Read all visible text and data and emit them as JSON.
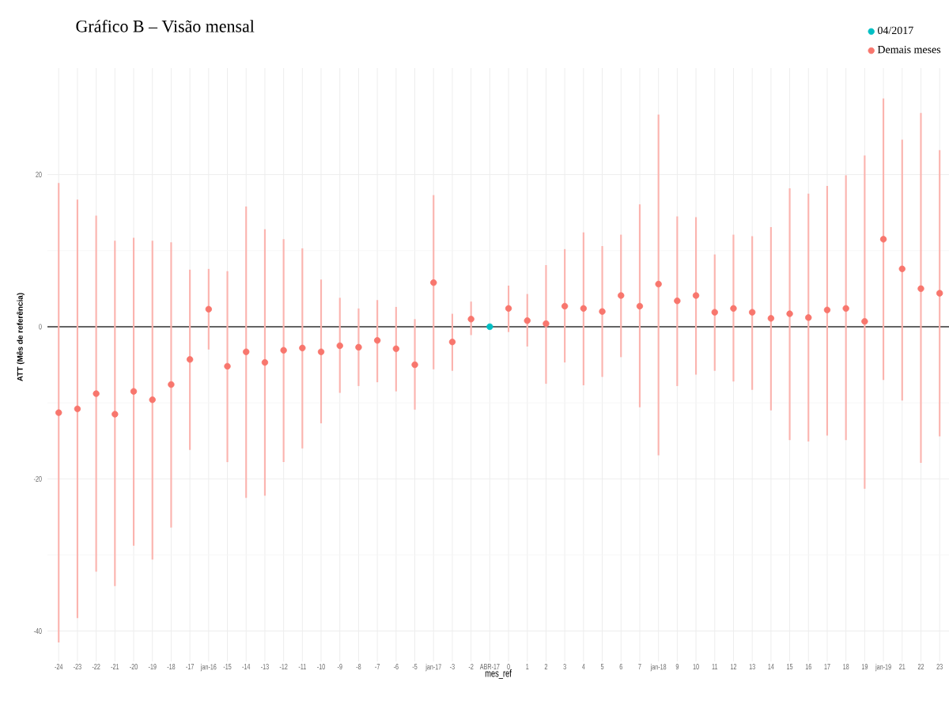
{
  "chart_data": {
    "type": "scatter",
    "title": "Gráfico B – Visão mensal",
    "xlabel": "mes_ref",
    "ylabel": "ATT (Mês de referência)",
    "categories": [
      "-24",
      "-23",
      "-22",
      "-21",
      "-20",
      "-19",
      "-18",
      "-17",
      "jan-16",
      "-15",
      "-14",
      "-13",
      "-12",
      "-11",
      "-10",
      "-9",
      "-8",
      "-7",
      "-6",
      "-5",
      "jan-17",
      "-3",
      "-2",
      "ABR-17",
      "0",
      "1",
      "2",
      "3",
      "4",
      "5",
      "6",
      "7",
      "jan-18",
      "9",
      "10",
      "11",
      "12",
      "13",
      "14",
      "15",
      "16",
      "17",
      "18",
      "19",
      "jan-19",
      "21",
      "22",
      "23"
    ],
    "series": [
      {
        "name": "04/2017",
        "color": "#00bfc4",
        "values": [
          null,
          null,
          null,
          null,
          null,
          null,
          null,
          null,
          null,
          null,
          null,
          null,
          null,
          null,
          null,
          null,
          null,
          null,
          null,
          null,
          null,
          null,
          null,
          0,
          null,
          null,
          null,
          null,
          null,
          null,
          null,
          null,
          null,
          null,
          null,
          null,
          null,
          null,
          null,
          null,
          null,
          null,
          null,
          null,
          null,
          null,
          null,
          null
        ]
      },
      {
        "name": "Demais meses",
        "color": "#f8766d",
        "values": [
          -11.3,
          -10.8,
          -8.8,
          -11.5,
          -8.5,
          -9.6,
          -7.6,
          -4.3,
          2.3,
          -5.2,
          -3.3,
          -4.7,
          -3.1,
          -2.8,
          -3.3,
          -2.5,
          -2.7,
          -1.8,
          -2.9,
          -5.0,
          5.8,
          -2.0,
          1.0,
          null,
          2.4,
          0.8,
          0.4,
          2.7,
          2.4,
          2.0,
          4.1,
          2.7,
          5.6,
          3.4,
          4.1,
          1.9,
          2.4,
          1.9,
          1.1,
          1.7,
          1.2,
          2.2,
          2.4,
          0.7,
          11.5,
          7.6,
          5.0,
          4.4
        ],
        "errors": [
          [
            -41.5,
            18.9
          ],
          [
            -38.3,
            16.7
          ],
          [
            -32.2,
            14.6
          ],
          [
            -34.1,
            11.3
          ],
          [
            -28.8,
            11.7
          ],
          [
            -30.6,
            11.3
          ],
          [
            -26.4,
            11.1
          ],
          [
            -16.2,
            7.5
          ],
          [
            -3.0,
            7.6
          ],
          [
            -17.8,
            7.3
          ],
          [
            -22.5,
            15.8
          ],
          [
            -22.2,
            12.8
          ],
          [
            -17.8,
            11.5
          ],
          [
            -16.0,
            10.3
          ],
          [
            -12.7,
            6.2
          ],
          [
            -8.7,
            3.8
          ],
          [
            -7.8,
            2.4
          ],
          [
            -7.3,
            3.5
          ],
          [
            -8.5,
            2.6
          ],
          [
            -10.9,
            1.0
          ],
          [
            -5.6,
            17.3
          ],
          [
            -5.8,
            1.7
          ],
          [
            -1.1,
            3.3
          ],
          null,
          [
            -0.7,
            5.4
          ],
          [
            -2.6,
            4.3
          ],
          [
            -7.5,
            8.1
          ],
          [
            -4.7,
            10.2
          ],
          [
            -7.7,
            12.4
          ],
          [
            -6.6,
            10.6
          ],
          [
            -4.0,
            12.1
          ],
          [
            -10.6,
            16.1
          ],
          [
            -16.9,
            27.9
          ],
          [
            -7.8,
            14.5
          ],
          [
            -6.3,
            14.4
          ],
          [
            -5.8,
            9.5
          ],
          [
            -7.2,
            12.1
          ],
          [
            -8.3,
            11.9
          ],
          [
            -11.0,
            13.1
          ],
          [
            -14.9,
            18.2
          ],
          [
            -15.1,
            17.5
          ],
          [
            -14.3,
            18.5
          ],
          [
            -14.9,
            19.9
          ],
          [
            -21.3,
            22.5
          ],
          [
            -7.0,
            30.0
          ],
          [
            -9.7,
            24.6
          ],
          [
            -17.9,
            28.1
          ],
          [
            -14.4,
            23.2
          ]
        ]
      }
    ],
    "ylim": [
      -44,
      34
    ],
    "yticks": [
      -40,
      -20,
      0,
      20
    ],
    "grid": true,
    "legend": "top right",
    "marker": "circle",
    "ref_lines": [
      {
        "axis": "y",
        "value": 0,
        "color": "#333333"
      }
    ]
  }
}
